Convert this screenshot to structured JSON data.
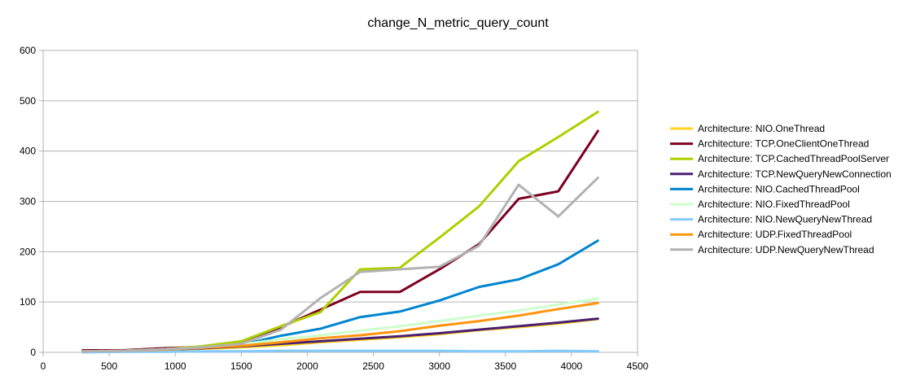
{
  "chart_data": {
    "type": "line",
    "title": "change_N_metric_query_count",
    "xlabel": "",
    "ylabel": "",
    "xlim": [
      0,
      4500
    ],
    "ylim": [
      0,
      600
    ],
    "xticks": [
      0,
      500,
      1000,
      1500,
      2000,
      2500,
      3000,
      3500,
      4000,
      4500
    ],
    "yticks": [
      0,
      100,
      200,
      300,
      400,
      500,
      600
    ],
    "grid": true,
    "legend_position": "right",
    "x": [
      300,
      600,
      900,
      1200,
      1500,
      1800,
      2100,
      2400,
      2700,
      3000,
      3300,
      3600,
      3900,
      4200
    ],
    "series": [
      {
        "name": "Architecture: NIO.OneThread",
        "color": "#ffd320",
        "values": [
          1,
          2,
          4,
          7,
          10,
          14,
          20,
          25,
          30,
          36,
          44,
          50,
          57,
          66
        ]
      },
      {
        "name": "Architecture: TCP.OneClientOneThread",
        "color": "#7e0021",
        "values": [
          4,
          4,
          8,
          11,
          18,
          50,
          85,
          120,
          120,
          165,
          215,
          305,
          320,
          440
        ]
      },
      {
        "name": "Architecture: TCP.CachedThreadPoolServer",
        "color": "#aecf00",
        "values": [
          2,
          3,
          6,
          12,
          22,
          52,
          80,
          165,
          168,
          228,
          290,
          380,
          428,
          478
        ]
      },
      {
        "name": "Architecture: TCP.NewQueryNewConnection",
        "color": "#4b1f6f",
        "values": [
          2,
          3,
          5,
          8,
          12,
          17,
          22,
          27,
          32,
          38,
          45,
          52,
          59,
          67
        ]
      },
      {
        "name": "Architecture: NIO.CachedThreadPool",
        "color": "#0084d1",
        "values": [
          2,
          3,
          5,
          9,
          15,
          33,
          47,
          70,
          81,
          103,
          130,
          145,
          175,
          222
        ]
      },
      {
        "name": "Architecture: NIO.FixedThreadPool",
        "color": "#ccffcc",
        "values": [
          2,
          3,
          6,
          10,
          16,
          26,
          34,
          43,
          52,
          62,
          73,
          83,
          95,
          107
        ]
      },
      {
        "name": "Architecture: NIO.NewQueryNewThread",
        "color": "#83caff",
        "values": [
          0,
          1,
          1,
          2,
          2,
          3,
          3,
          3,
          3,
          3,
          2,
          2,
          3,
          2
        ]
      },
      {
        "name": "Architecture: UDP.FixedThreadPool",
        "color": "#ff950e",
        "values": [
          2,
          3,
          5,
          9,
          13,
          20,
          28,
          34,
          42,
          53,
          62,
          73,
          86,
          98
        ]
      },
      {
        "name": "Architecture: UDP.NewQueryNewThread",
        "color": "#b2b2b2",
        "values": [
          2,
          3,
          6,
          10,
          17,
          45,
          108,
          160,
          165,
          170,
          212,
          333,
          270,
          347
        ]
      }
    ]
  }
}
